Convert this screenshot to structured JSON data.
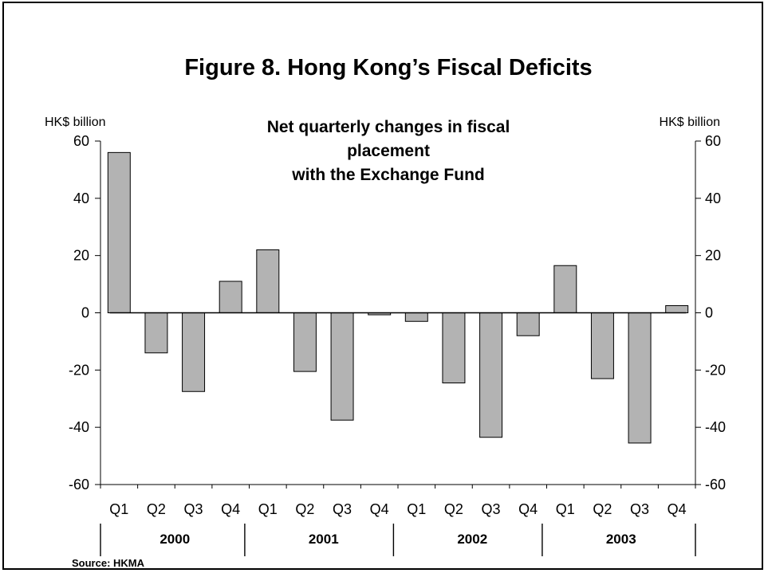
{
  "title": "Figure 8. Hong Kong’s Fiscal Deficits",
  "subtitle_lines": [
    "Net quarterly changes in fiscal",
    "placement",
    "with the Exchange Fund"
  ],
  "left_unit": "HK$ billion",
  "right_unit": "HK$ billion",
  "source": "Source: HKMA",
  "colors": {
    "bar_fill": "#b3b3b3",
    "bar_stroke": "#000000",
    "axis": "#000000"
  },
  "chart_data": {
    "type": "bar",
    "categories": [
      "Q1",
      "Q2",
      "Q3",
      "Q4",
      "Q1",
      "Q2",
      "Q3",
      "Q4",
      "Q1",
      "Q2",
      "Q3",
      "Q4",
      "Q1",
      "Q2",
      "Q3",
      "Q4"
    ],
    "groups": [
      "2000",
      "2001",
      "2002",
      "2003"
    ],
    "values": [
      56,
      -14,
      -27.5,
      11,
      22,
      -20.5,
      -37.5,
      -0.7,
      -3,
      -24.5,
      -43.5,
      -8,
      16.5,
      -23,
      -45.5,
      2.5
    ],
    "ylim": [
      -60,
      60
    ],
    "yticks": [
      60,
      40,
      20,
      0,
      -20,
      -40,
      -60
    ],
    "secondary_ylim": [
      -60,
      60
    ],
    "legend": "none",
    "grid": false
  }
}
